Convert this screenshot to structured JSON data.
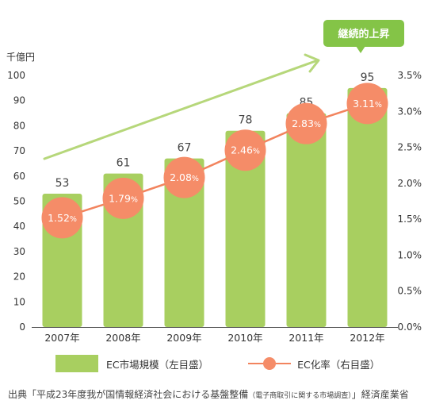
{
  "chart_data": {
    "type": "bar",
    "categories": [
      "2007年",
      "2008年",
      "2009年",
      "2010年",
      "2011年",
      "2012年"
    ],
    "series": [
      {
        "name": "EC市場規模（左目盛）",
        "type": "bar",
        "axis": "left",
        "values": [
          53,
          61,
          67,
          78,
          85,
          95
        ],
        "labels": [
          "53",
          "61",
          "67",
          "78",
          "85",
          "95"
        ]
      },
      {
        "name": "EC化率（右目盛）",
        "type": "line",
        "axis": "right",
        "values": [
          1.52,
          1.79,
          2.08,
          2.46,
          2.83,
          3.11
        ],
        "labels": [
          "1.52",
          "1.79",
          "2.08",
          "2.46",
          "2.83",
          "3.11"
        ],
        "label_suffix": "%"
      }
    ],
    "left_axis": {
      "label": "千億円",
      "min": 0,
      "max": 100,
      "ticks": [
        "0",
        "10",
        "20",
        "30",
        "40",
        "50",
        "60",
        "70",
        "80",
        "90",
        "100"
      ]
    },
    "right_axis": {
      "min": 0,
      "max": 3.5,
      "ticks": [
        "0.0%",
        "0.5%",
        "1.0%",
        "1.5%",
        "2.0%",
        "2.5%",
        "3.0%",
        "3.5%"
      ]
    },
    "annotation": "継続的上昇",
    "legend_position": "bottom",
    "grid": false
  },
  "legend": {
    "bar_label": "EC市場規模（左目盛）",
    "line_label": "EC化率（右目盛）"
  },
  "source": {
    "prefix": "出典「平成23年度我が国情報経済社会における基盤整備",
    "small": "（電子商取引に関する市場調査）",
    "suffix": "」経済産業省"
  },
  "colors": {
    "bar": "#a8cf60",
    "line": "#f2845e",
    "dot": "#f58c68",
    "badge": "#84c447",
    "trend": "#b6d77a"
  }
}
